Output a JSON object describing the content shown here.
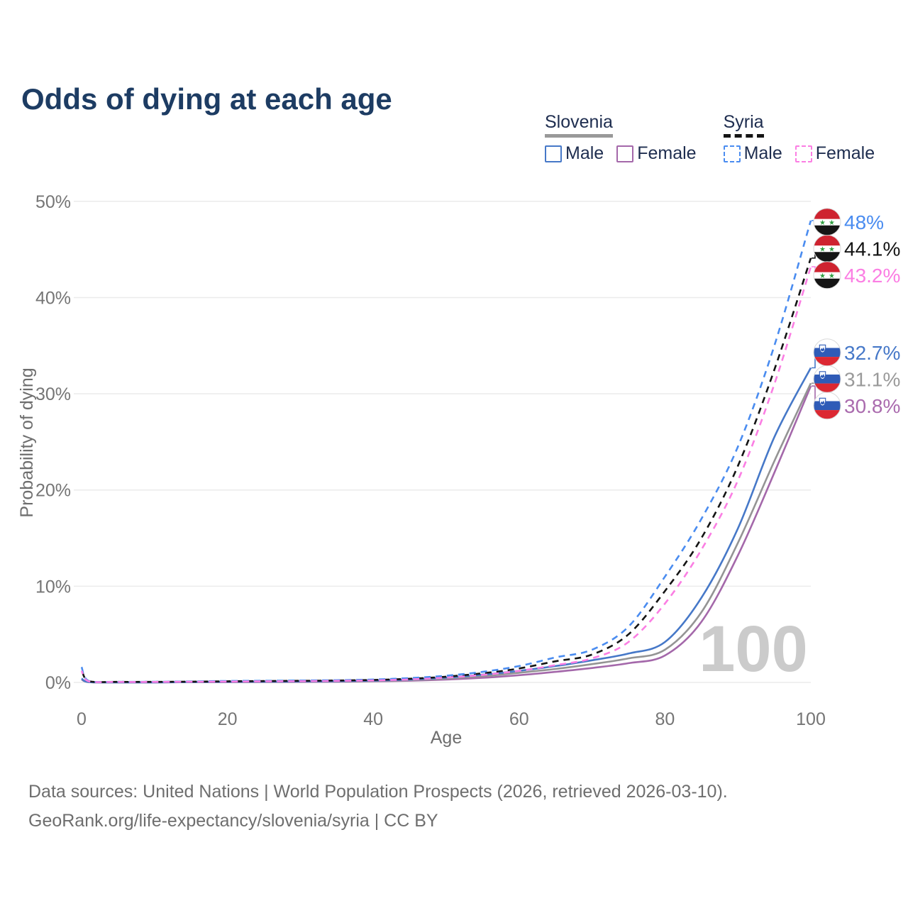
{
  "title": "Odds of dying at each age",
  "legend": {
    "groups": [
      {
        "id": "slovenia",
        "label": "Slovenia",
        "line_style": "solid",
        "underline_color": "#999999",
        "items": [
          {
            "label": "Male",
            "color": "#4678c8",
            "dashed": false
          },
          {
            "label": "Female",
            "color": "#a468aa",
            "dashed": false
          }
        ]
      },
      {
        "id": "syria",
        "label": "Syria",
        "line_style": "dashed",
        "underline_color": "#151515",
        "items": [
          {
            "label": "Male",
            "color": "#4a8cf0",
            "dashed": true
          },
          {
            "label": "Female",
            "color": "#fb7ee3",
            "dashed": true
          }
        ]
      }
    ]
  },
  "chart_data": {
    "type": "line",
    "title": "Odds of dying at each age",
    "xlabel": "Age",
    "ylabel": "Probability of dying",
    "xlim": [
      0,
      100
    ],
    "ylim": [
      0,
      50
    ],
    "x_tick_values": [
      0,
      20,
      40,
      60,
      80,
      100
    ],
    "x_tick_labels": [
      "0",
      "20",
      "40",
      "60",
      "80",
      "100"
    ],
    "y_tick_values": [
      0,
      10,
      20,
      30,
      40,
      50
    ],
    "y_tick_labels": [
      "0%",
      "10%",
      "20%",
      "30%",
      "40%",
      "50%"
    ],
    "grid": "horizontal",
    "legend_position": "top-right",
    "watermark": "100",
    "x": [
      0,
      1,
      5,
      10,
      15,
      20,
      25,
      30,
      35,
      40,
      45,
      50,
      55,
      60,
      65,
      70,
      75,
      80,
      85,
      90,
      95,
      100
    ],
    "series": [
      {
        "id": "slovenia_female",
        "country": "Slovenia",
        "sex": "Female",
        "flag": "slovenia",
        "color": "#a468aa",
        "label_color": "#aa6bae",
        "dashed": false,
        "end_label": "30.8%",
        "values": [
          0.3,
          0.03,
          0.01,
          0.01,
          0.02,
          0.03,
          0.04,
          0.05,
          0.07,
          0.11,
          0.18,
          0.3,
          0.48,
          0.75,
          1.1,
          1.5,
          2.0,
          2.8,
          6.3,
          13.2,
          21.8,
          30.8
        ]
      },
      {
        "id": "slovenia_both",
        "country": "Slovenia",
        "sex": "Both",
        "flag": "slovenia",
        "color": "#949494",
        "label_color": "#9a9a9a",
        "dashed": false,
        "end_label": "31.1%",
        "values": [
          0.35,
          0.03,
          0.01,
          0.01,
          0.03,
          0.05,
          0.06,
          0.08,
          0.1,
          0.15,
          0.24,
          0.4,
          0.65,
          1.0,
          1.4,
          1.9,
          2.5,
          3.4,
          7.3,
          14.5,
          23.0,
          31.1
        ]
      },
      {
        "id": "slovenia_male",
        "country": "Slovenia",
        "sex": "Male",
        "flag": "slovenia",
        "color": "#4678c8",
        "label_color": "#4678c8",
        "dashed": false,
        "end_label": "32.7%",
        "values": [
          0.4,
          0.04,
          0.01,
          0.01,
          0.04,
          0.07,
          0.08,
          0.1,
          0.13,
          0.19,
          0.3,
          0.5,
          0.8,
          1.2,
          1.7,
          2.3,
          3.0,
          4.2,
          8.8,
          16.0,
          25.5,
          32.7
        ]
      },
      {
        "id": "syria_both",
        "country": "Syria",
        "sex": "Both",
        "flag": "syria",
        "color": "#141414",
        "label_color": "#141414",
        "dashed": true,
        "end_label": "44.1%",
        "values": [
          1.4,
          0.13,
          0.06,
          0.06,
          0.08,
          0.12,
          0.14,
          0.17,
          0.2,
          0.26,
          0.38,
          0.6,
          0.95,
          1.45,
          2.2,
          2.9,
          5.0,
          9.5,
          15.0,
          22.5,
          32.5,
          44.1
        ]
      },
      {
        "id": "syria_male",
        "country": "Syria",
        "sex": "Male",
        "flag": "syria",
        "color": "#4a8cf0",
        "label_color": "#4a8cf0",
        "dashed": true,
        "end_label": "48%",
        "values": [
          1.6,
          0.15,
          0.07,
          0.07,
          0.1,
          0.15,
          0.17,
          0.2,
          0.23,
          0.3,
          0.45,
          0.7,
          1.1,
          1.7,
          2.6,
          3.4,
          5.8,
          11.0,
          17.0,
          24.5,
          35.0,
          48.0
        ]
      },
      {
        "id": "syria_female",
        "country": "Syria",
        "sex": "Female",
        "flag": "syria",
        "color": "#fb7ee3",
        "label_color": "#fb7ee3",
        "dashed": true,
        "end_label": "43.2%",
        "values": [
          1.2,
          0.11,
          0.05,
          0.05,
          0.07,
          0.09,
          0.11,
          0.13,
          0.16,
          0.21,
          0.31,
          0.5,
          0.78,
          1.2,
          1.8,
          2.5,
          4.2,
          8.2,
          13.8,
          21.0,
          31.0,
          43.2
        ]
      }
    ]
  },
  "flag_colors": {
    "syria": {
      "red": "#ce2330",
      "white": "#ffffff",
      "black": "#151515",
      "green": "#2f9e41"
    },
    "slovenia": {
      "white": "#ffffff",
      "blue": "#2f5bb7",
      "red": "#dc2832"
    }
  },
  "style_colors": {
    "title": "#1d3c63",
    "legend_text": "#1e2d4f",
    "axis_text": "#757575",
    "axis_title": "#6e6e6e",
    "gridline": "#ebebeb",
    "watermark": "#cbcbcb",
    "label_text": "#141414"
  },
  "footer": {
    "line1": "Data sources: United Nations | World Population Prospects (2026, retrieved 2026-03-10).",
    "line2": "GeoRank.org/life-expectancy/slovenia/syria | CC BY"
  }
}
